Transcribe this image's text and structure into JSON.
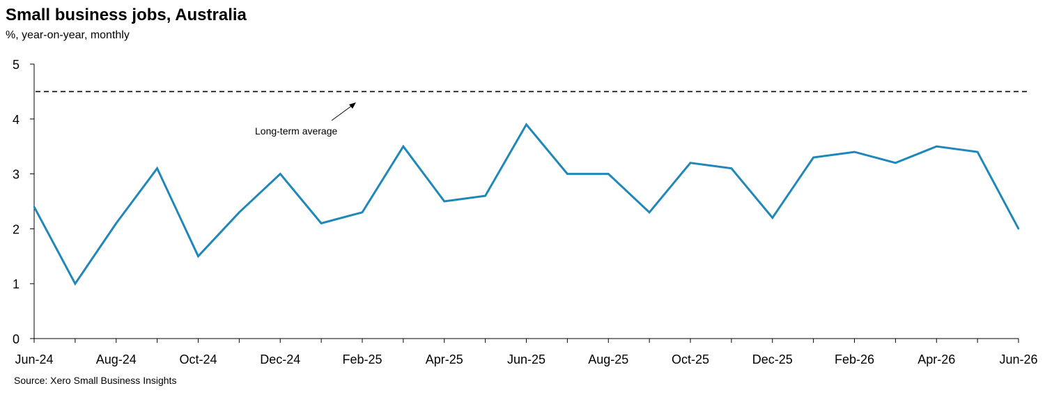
{
  "chart_data": {
    "type": "line",
    "title": "Small business jobs, Australia",
    "subtitle": "%, year-on-year, monthly",
    "source": "Source: Xero Small Business Insights",
    "ylim": [
      0,
      5
    ],
    "yticks": [
      0,
      1,
      2,
      3,
      4,
      5
    ],
    "x": [
      "Jun-24",
      "Jul-24",
      "Aug-24",
      "Sep-24",
      "Oct-24",
      "Nov-24",
      "Dec-24",
      "Jan-25",
      "Feb-25",
      "Mar-25",
      "Apr-25",
      "May-25",
      "Jun-25",
      "Jul-25",
      "Aug-25",
      "Sep-25",
      "Oct-25",
      "Nov-25",
      "Dec-25",
      "Jan-26",
      "Feb-26",
      "Mar-26",
      "Apr-26",
      "May-26",
      "Jun-26"
    ],
    "xtick_labels": [
      "Jun-24",
      "Aug-24",
      "Oct-24",
      "Dec-24",
      "Feb-25",
      "Apr-25",
      "Jun-25",
      "Aug-25",
      "Oct-25",
      "Dec-25",
      "Feb-26",
      "Apr-26",
      "Jun-26"
    ],
    "series": [
      {
        "values": [
          2.4,
          1.0,
          2.1,
          3.1,
          1.5,
          2.3,
          3.0,
          2.1,
          2.3,
          3.5,
          2.5,
          2.6,
          3.9,
          3.0,
          3.0,
          2.3,
          3.2,
          3.1,
          2.2,
          3.3,
          3.4,
          3.2,
          3.5,
          3.4,
          2.0
        ],
        "color": "#1f88b9"
      }
    ],
    "reference_line": {
      "value": 4.5,
      "style": "dashed",
      "color": "#000000",
      "label": "Long-term average"
    },
    "grid": false,
    "legend": "none"
  }
}
